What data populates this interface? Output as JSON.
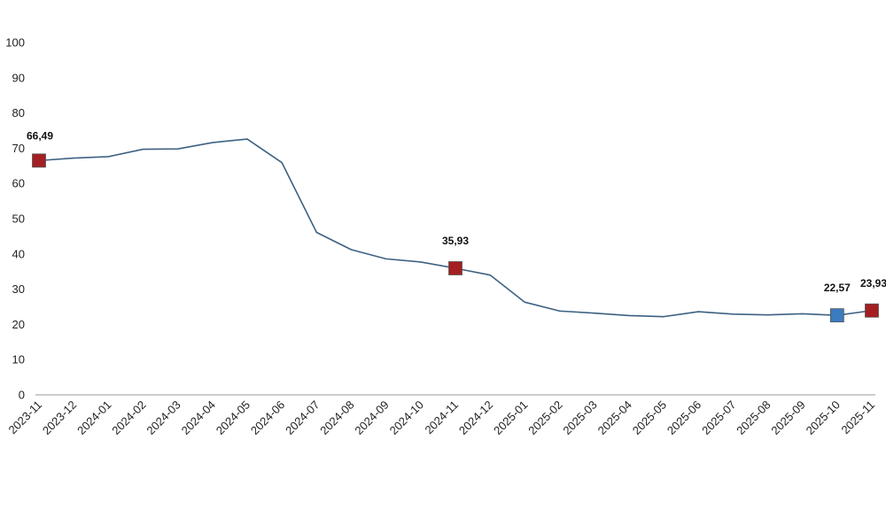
{
  "chart_data": {
    "type": "line",
    "title": "",
    "xlabel": "",
    "ylabel": "",
    "ylim": [
      0,
      100
    ],
    "yticks": [
      0,
      10,
      20,
      30,
      40,
      50,
      60,
      70,
      80,
      90,
      100
    ],
    "grid": false,
    "legend": "none",
    "categories": [
      "2023-11",
      "2023-12",
      "2024-01",
      "2024-02",
      "2024-03",
      "2024-04",
      "2024-05",
      "2024-06",
      "2024-07",
      "2024-08",
      "2024-09",
      "2024-10",
      "2024-11",
      "2024-12",
      "2025-01",
      "2025-02",
      "2025-03",
      "2025-04",
      "2025-05",
      "2025-06",
      "2025-07",
      "2025-08",
      "2025-09",
      "2025-10",
      "2025-11"
    ],
    "series": [
      {
        "color": "#3d6182",
        "values": [
          66.49,
          67.2,
          67.6,
          69.7,
          69.8,
          71.6,
          72.6,
          65.9,
          46.1,
          41.2,
          38.6,
          37.7,
          35.93,
          34.0,
          26.3,
          23.8,
          23.2,
          22.5,
          22.2,
          23.6,
          22.9,
          22.7,
          23.0,
          22.57,
          23.93
        ]
      }
    ],
    "annotations": [
      {
        "index": 0,
        "label": "66,49",
        "color": "#a31f22"
      },
      {
        "index": 12,
        "label": "35,93",
        "color": "#a31f22"
      },
      {
        "index": 23,
        "label": "22,57",
        "color": "#3b7bbf"
      },
      {
        "index": 24,
        "label": "23,93",
        "color": "#a31f22"
      }
    ]
  }
}
